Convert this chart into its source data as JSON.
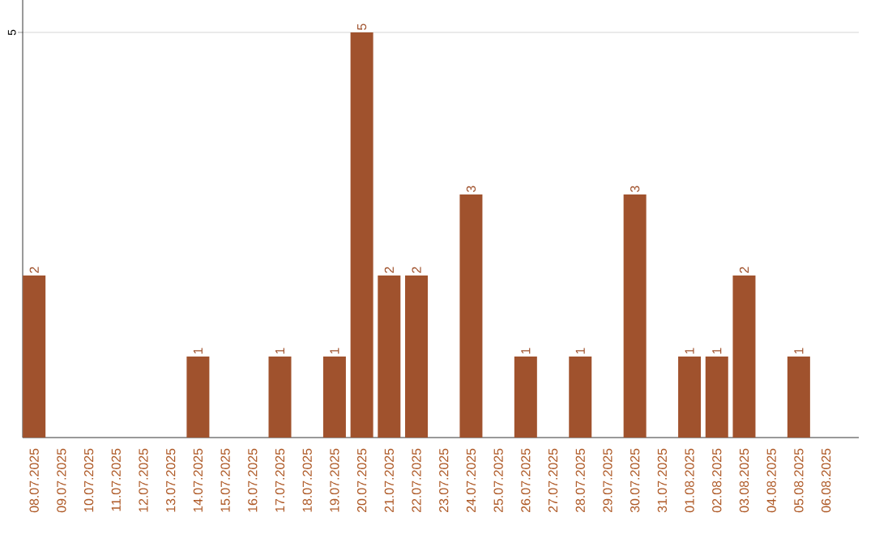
{
  "chart_data": {
    "type": "bar",
    "categories": [
      "08.07.2025",
      "09.07.2025",
      "10.07.2025",
      "11.07.2025",
      "12.07.2025",
      "13.07.2025",
      "14.07.2025",
      "15.07.2025",
      "16.07.2025",
      "17.07.2025",
      "18.07.2025",
      "19.07.2025",
      "20.07.2025",
      "21.07.2025",
      "22.07.2025",
      "23.07.2025",
      "24.07.2025",
      "25.07.2025",
      "26.07.2025",
      "27.07.2025",
      "28.07.2025",
      "29.07.2025",
      "30.07.2025",
      "31.07.2025",
      "01.08.2025",
      "02.08.2025",
      "03.08.2025",
      "04.08.2025",
      "05.08.2025",
      "06.08.2025"
    ],
    "values": [
      2,
      0,
      0,
      0,
      0,
      0,
      1,
      0,
      0,
      1,
      0,
      1,
      5,
      2,
      2,
      0,
      3,
      0,
      1,
      0,
      1,
      0,
      3,
      0,
      1,
      1,
      2,
      0,
      1,
      0
    ],
    "value_labels": [
      "2",
      null,
      null,
      null,
      null,
      null,
      "1",
      null,
      null,
      "1",
      null,
      "1",
      "5",
      "2",
      "2",
      null,
      "3",
      null,
      "1",
      null,
      "1",
      null,
      "3",
      null,
      "1",
      "1",
      "2",
      null,
      "1",
      null
    ],
    "color": "#a0522d",
    "ylim": [
      0,
      5.4
    ],
    "yticks": [
      5
    ],
    "grid": "y"
  }
}
